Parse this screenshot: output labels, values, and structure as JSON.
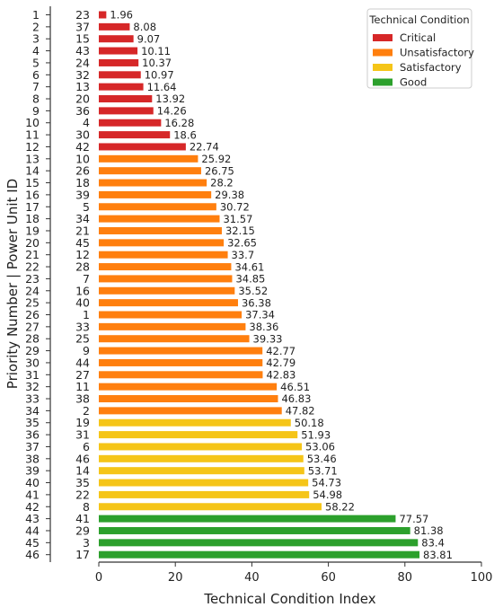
{
  "chart_data": {
    "type": "bar",
    "orientation": "horizontal",
    "xlabel": "Technical Condition Index",
    "ylabel": "Priority Number | Power Unit ID",
    "xlim": [
      0,
      100
    ],
    "xticks": [
      0,
      20,
      40,
      60,
      80,
      100
    ],
    "grid": false,
    "legend": {
      "title": "Technical Condition",
      "placement": "top-right",
      "entries": [
        {
          "label": "Critical",
          "color": "#d62728"
        },
        {
          "label": "Unsatisfactory",
          "color": "#ff7f0e"
        },
        {
          "label": "Satisfactory",
          "color": "#f5c518"
        },
        {
          "label": "Good",
          "color": "#2ca02c"
        }
      ]
    },
    "rows": [
      {
        "priority": "1",
        "unit": "23",
        "value": 1.96,
        "category": "Critical"
      },
      {
        "priority": "2",
        "unit": "37",
        "value": 8.08,
        "category": "Critical"
      },
      {
        "priority": "3",
        "unit": "15",
        "value": 9.07,
        "category": "Critical"
      },
      {
        "priority": "4",
        "unit": "43",
        "value": 10.11,
        "category": "Critical"
      },
      {
        "priority": "5",
        "unit": "24",
        "value": 10.37,
        "category": "Critical"
      },
      {
        "priority": "6",
        "unit": "32",
        "value": 10.97,
        "category": "Critical"
      },
      {
        "priority": "7",
        "unit": "13",
        "value": 11.64,
        "category": "Critical"
      },
      {
        "priority": "8",
        "unit": "20",
        "value": 13.92,
        "category": "Critical"
      },
      {
        "priority": "9",
        "unit": "36",
        "value": 14.26,
        "category": "Critical"
      },
      {
        "priority": "10",
        "unit": "4",
        "value": 16.28,
        "category": "Critical"
      },
      {
        "priority": "11",
        "unit": "30",
        "value": 18.6,
        "category": "Critical"
      },
      {
        "priority": "12",
        "unit": "42",
        "value": 22.74,
        "category": "Critical"
      },
      {
        "priority": "13",
        "unit": "10",
        "value": 25.92,
        "category": "Unsatisfactory"
      },
      {
        "priority": "14",
        "unit": "26",
        "value": 26.75,
        "category": "Unsatisfactory"
      },
      {
        "priority": "15",
        "unit": "18",
        "value": 28.2,
        "category": "Unsatisfactory"
      },
      {
        "priority": "16",
        "unit": "39",
        "value": 29.38,
        "category": "Unsatisfactory"
      },
      {
        "priority": "17",
        "unit": "5",
        "value": 30.72,
        "category": "Unsatisfactory"
      },
      {
        "priority": "18",
        "unit": "34",
        "value": 31.57,
        "category": "Unsatisfactory"
      },
      {
        "priority": "19",
        "unit": "21",
        "value": 32.15,
        "category": "Unsatisfactory"
      },
      {
        "priority": "20",
        "unit": "45",
        "value": 32.65,
        "category": "Unsatisfactory"
      },
      {
        "priority": "21",
        "unit": "12",
        "value": 33.7,
        "category": "Unsatisfactory"
      },
      {
        "priority": "22",
        "unit": "28",
        "value": 34.61,
        "category": "Unsatisfactory"
      },
      {
        "priority": "23",
        "unit": "7",
        "value": 34.85,
        "category": "Unsatisfactory"
      },
      {
        "priority": "24",
        "unit": "16",
        "value": 35.52,
        "category": "Unsatisfactory"
      },
      {
        "priority": "25",
        "unit": "40",
        "value": 36.38,
        "category": "Unsatisfactory"
      },
      {
        "priority": "26",
        "unit": "1",
        "value": 37.34,
        "category": "Unsatisfactory"
      },
      {
        "priority": "27",
        "unit": "33",
        "value": 38.36,
        "category": "Unsatisfactory"
      },
      {
        "priority": "28",
        "unit": "25",
        "value": 39.33,
        "category": "Unsatisfactory"
      },
      {
        "priority": "29",
        "unit": "9",
        "value": 42.77,
        "category": "Unsatisfactory"
      },
      {
        "priority": "30",
        "unit": "44",
        "value": 42.79,
        "category": "Unsatisfactory"
      },
      {
        "priority": "31",
        "unit": "27",
        "value": 42.83,
        "category": "Unsatisfactory"
      },
      {
        "priority": "32",
        "unit": "11",
        "value": 46.51,
        "category": "Unsatisfactory"
      },
      {
        "priority": "33",
        "unit": "38",
        "value": 46.83,
        "category": "Unsatisfactory"
      },
      {
        "priority": "34",
        "unit": "2",
        "value": 47.82,
        "category": "Unsatisfactory"
      },
      {
        "priority": "35",
        "unit": "19",
        "value": 50.18,
        "category": "Satisfactory"
      },
      {
        "priority": "36",
        "unit": "31",
        "value": 51.93,
        "category": "Satisfactory"
      },
      {
        "priority": "37",
        "unit": "6",
        "value": 53.06,
        "category": "Satisfactory"
      },
      {
        "priority": "38",
        "unit": "46",
        "value": 53.46,
        "category": "Satisfactory"
      },
      {
        "priority": "39",
        "unit": "14",
        "value": 53.71,
        "category": "Satisfactory"
      },
      {
        "priority": "40",
        "unit": "35",
        "value": 54.73,
        "category": "Satisfactory"
      },
      {
        "priority": "41",
        "unit": "22",
        "value": 54.98,
        "category": "Satisfactory"
      },
      {
        "priority": "42",
        "unit": "8",
        "value": 58.22,
        "category": "Satisfactory"
      },
      {
        "priority": "43",
        "unit": "41",
        "value": 77.57,
        "category": "Good"
      },
      {
        "priority": "44",
        "unit": "29",
        "value": 81.38,
        "category": "Good"
      },
      {
        "priority": "45",
        "unit": "3",
        "value": 83.4,
        "category": "Good"
      },
      {
        "priority": "46",
        "unit": "17",
        "value": 83.81,
        "category": "Good"
      }
    ]
  }
}
